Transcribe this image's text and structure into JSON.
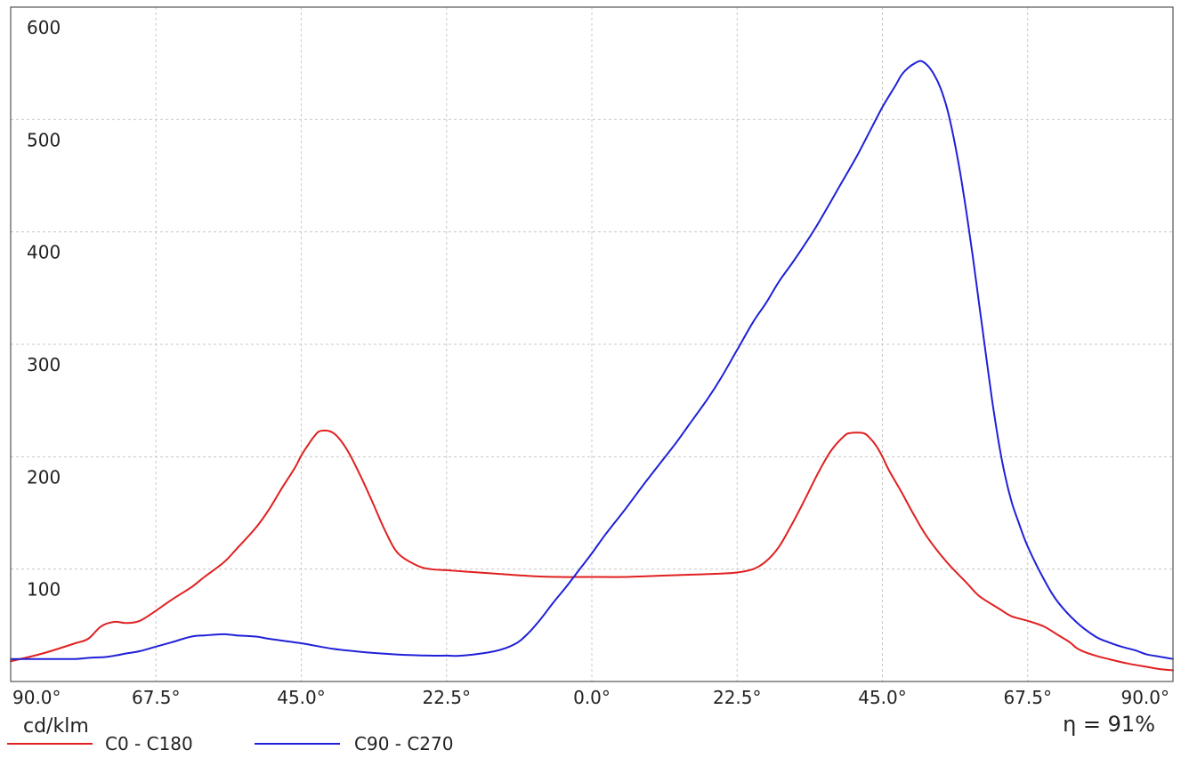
{
  "chart_data": {
    "type": "line",
    "unit_label": "cd/klm",
    "efficiency_label": "η = 91%",
    "xlim": [
      -90,
      90
    ],
    "ylim": [
      0,
      600
    ],
    "grid": true,
    "legend_position": "bottom-left",
    "x_tick_values": [
      -90,
      -67.5,
      -45,
      -22.5,
      0,
      22.5,
      45,
      67.5,
      90
    ],
    "x_tick_labels": [
      "90.0°",
      "67.5°",
      "45.0°",
      "22.5°",
      "0.0°",
      "22.5°",
      "45.0°",
      "67.5°",
      "90.0°"
    ],
    "y_tick_values": [
      100,
      200,
      300,
      400,
      500,
      600
    ],
    "y_tick_labels": [
      "100",
      "200",
      "300",
      "400",
      "500",
      "600"
    ],
    "series": [
      {
        "name": "C0 - C180",
        "color": "#e02020",
        "x": [
          -90,
          -85,
          -80,
          -78,
          -76,
          -74,
          -72,
          -70,
          -67.5,
          -65,
          -62,
          -60,
          -57,
          -55,
          -52,
          -50,
          -48,
          -46,
          -45,
          -44,
          -43,
          -42,
          -40,
          -38,
          -36,
          -34,
          -32,
          -30,
          -27,
          -25,
          -22.5,
          -20,
          -15,
          -10,
          -5,
          0,
          5,
          10,
          15,
          20,
          22.5,
          25,
          27,
          29,
          31,
          33,
          35,
          37,
          39,
          40,
          42,
          43,
          44,
          45,
          46,
          48,
          50,
          52,
          55,
          58,
          60,
          63,
          65,
          67.5,
          70,
          72,
          74,
          75,
          76,
          78,
          80,
          83,
          86,
          88,
          90
        ],
        "values": [
          8,
          15,
          24,
          28,
          39,
          43,
          42,
          44,
          53,
          63,
          74,
          83,
          96,
          108,
          127,
          143,
          162,
          180,
          191,
          200,
          208,
          213,
          211,
          197,
          175,
          150,
          124,
          104,
          93,
          90,
          89,
          88,
          86,
          84,
          83,
          83,
          83,
          84,
          85,
          86,
          87,
          90,
          97,
          110,
          130,
          152,
          175,
          195,
          208,
          211,
          211,
          207,
          200,
          190,
          178,
          158,
          137,
          118,
          96,
          78,
          66,
          55,
          48,
          44,
          39,
          32,
          25,
          20,
          17,
          13,
          10,
          6,
          3,
          1,
          0
        ]
      },
      {
        "name": "C90 - C270",
        "color": "#2020d8",
        "x": [
          -90,
          -85,
          -80,
          -78,
          -75,
          -72,
          -70,
          -67.5,
          -65,
          -62,
          -60,
          -57,
          -55,
          -52,
          -50,
          -45,
          -40,
          -35,
          -30,
          -25,
          -22.5,
          -20,
          -15,
          -12,
          -10,
          -8,
          -6,
          -4,
          -2,
          0,
          2,
          5,
          8,
          10,
          13,
          15,
          18,
          20,
          22.5,
          25,
          27,
          29,
          31,
          33,
          35,
          37,
          39,
          41,
          43,
          45,
          47,
          48,
          49,
          50,
          51,
          52,
          53,
          54,
          55,
          56,
          57,
          58,
          59,
          60,
          61,
          62,
          63,
          64,
          65,
          66,
          67.5,
          70,
          72,
          75,
          78,
          80,
          82,
          84,
          85,
          86,
          88,
          90
        ],
        "values": [
          0,
          0,
          0,
          1,
          2,
          5,
          7,
          11,
          15,
          20,
          21,
          22,
          21,
          20,
          18,
          14,
          9,
          6,
          4,
          3,
          3,
          3,
          7,
          13,
          22,
          35,
          50,
          64,
          79,
          94,
          110,
          132,
          155,
          170,
          192,
          208,
          232,
          250,
          275,
          300,
          317,
          336,
          352,
          369,
          387,
          407,
          427,
          447,
          469,
          491,
          510,
          520,
          526,
          530,
          532,
          528,
          520,
          508,
          490,
          465,
          434,
          398,
          358,
          315,
          272,
          230,
          193,
          163,
          140,
          123,
          100,
          71,
          52,
          33,
          20,
          15,
          11,
          8,
          6,
          4,
          2,
          0
        ]
      }
    ]
  }
}
